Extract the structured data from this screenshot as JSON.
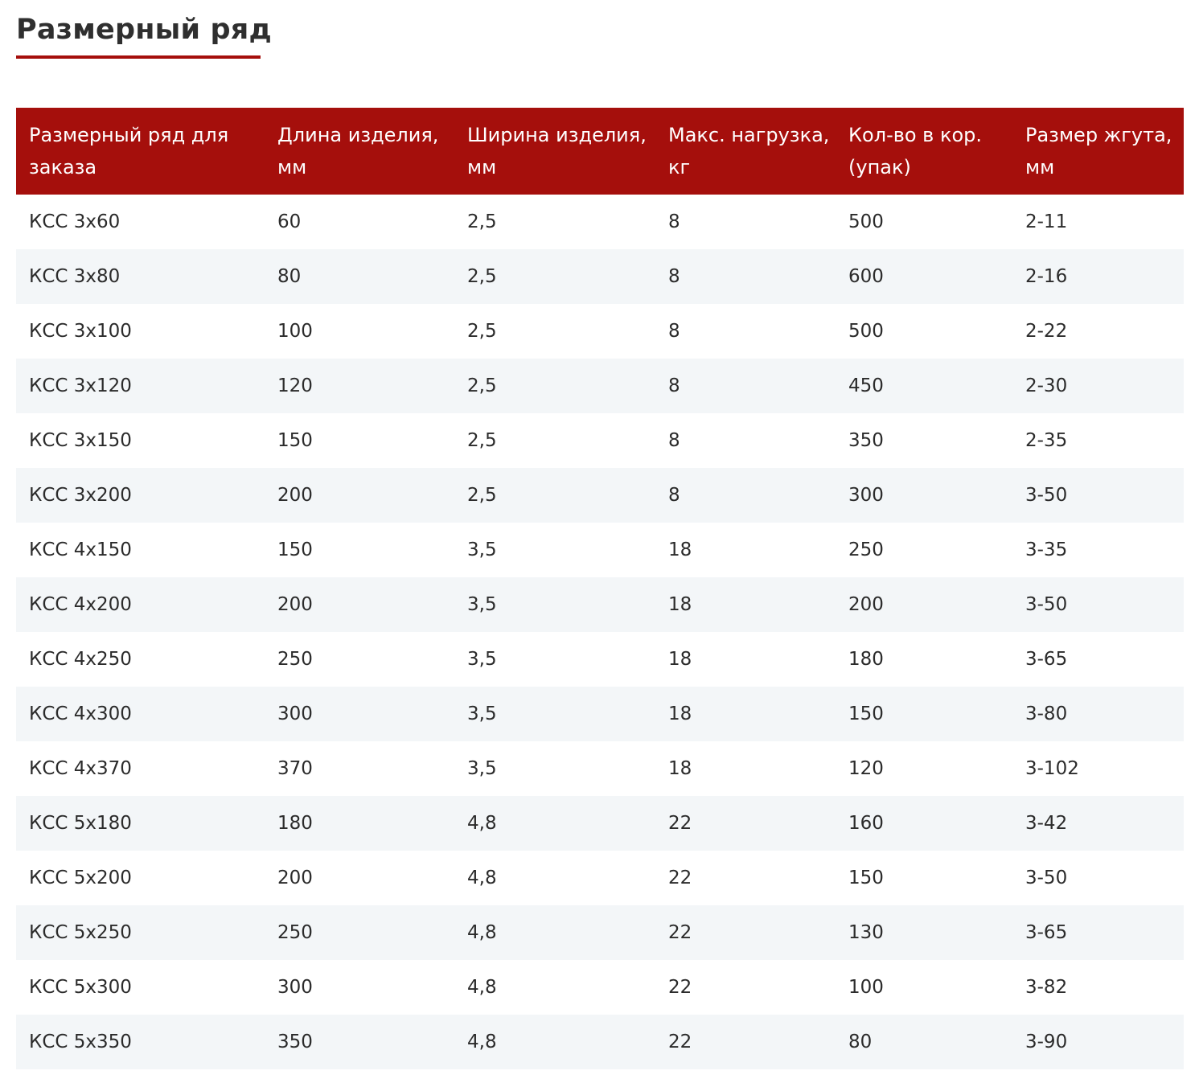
{
  "page": {
    "title": "Размерный ряд"
  },
  "colors": {
    "accent": "#a50f0c",
    "row_stripe": "#f3f6f8",
    "text": "#2b2b2b"
  },
  "table": {
    "headers": [
      "Размерный ряд для заказа",
      "Длина изделия, мм",
      "Ширина изделия, мм",
      "Макс. нагрузка, кг",
      "Кол-во в кор. (упак)",
      "Размер жгута, мм"
    ],
    "rows": [
      [
        "КСС 3х60",
        "60",
        "2,5",
        "8",
        "500",
        "2-11"
      ],
      [
        "КСС 3х80",
        "80",
        "2,5",
        "8",
        "600",
        "2-16"
      ],
      [
        "КСС 3х100",
        "100",
        "2,5",
        "8",
        "500",
        "2-22"
      ],
      [
        "КСС 3х120",
        "120",
        "2,5",
        "8",
        "450",
        "2-30"
      ],
      [
        "КСС 3х150",
        "150",
        "2,5",
        "8",
        "350",
        "2-35"
      ],
      [
        "КСС 3х200",
        "200",
        "2,5",
        "8",
        "300",
        "3-50"
      ],
      [
        "КСС 4х150",
        "150",
        "3,5",
        "18",
        "250",
        "3-35"
      ],
      [
        "КСС 4х200",
        "200",
        "3,5",
        "18",
        "200",
        "3-50"
      ],
      [
        "КСС 4х250",
        "250",
        "3,5",
        "18",
        "180",
        "3-65"
      ],
      [
        "КСС 4х300",
        "300",
        "3,5",
        "18",
        "150",
        "3-80"
      ],
      [
        "КСС 4х370",
        "370",
        "3,5",
        "18",
        "120",
        "3-102"
      ],
      [
        "КСС 5х180",
        "180",
        "4,8",
        "22",
        "160",
        "3-42"
      ],
      [
        "КСС 5х200",
        "200",
        "4,8",
        "22",
        "150",
        "3-50"
      ],
      [
        "КСС 5х250",
        "250",
        "4,8",
        "22",
        "130",
        "3-65"
      ],
      [
        "КСС 5х300",
        "300",
        "4,8",
        "22",
        "100",
        "3-82"
      ],
      [
        "КСС 5х350",
        "350",
        "4,8",
        "22",
        "80",
        "3-90"
      ]
    ]
  }
}
